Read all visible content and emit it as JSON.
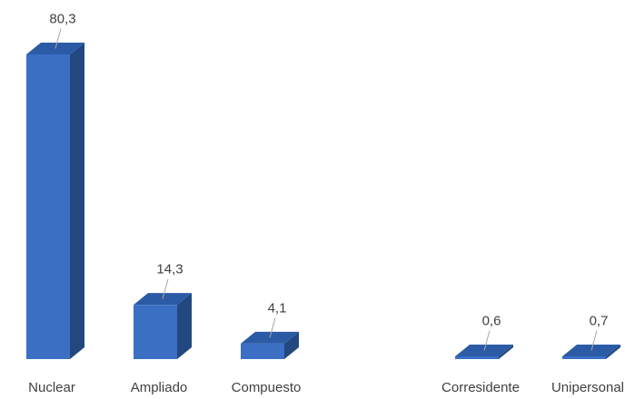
{
  "chart_data": {
    "type": "bar",
    "style": "3d-column",
    "categories": [
      "Nuclear",
      "Ampliado",
      "Compuesto",
      "",
      "Corresidente",
      "Unipersonal"
    ],
    "values": [
      80.3,
      14.3,
      4.1,
      null,
      0.6,
      0.7
    ],
    "data_labels": [
      "80,3",
      "14,3",
      "4,1",
      "",
      "0,6",
      "0,7"
    ],
    "title": "",
    "xlabel": "",
    "ylabel": "",
    "ylim": [
      0,
      80.3
    ],
    "grid": false,
    "legend": "none",
    "colors": {
      "front": "#3a6fc4",
      "side": "#22487f",
      "top": "#2c5ba6",
      "leader": "#a6a6a6",
      "text": "#404040"
    }
  }
}
